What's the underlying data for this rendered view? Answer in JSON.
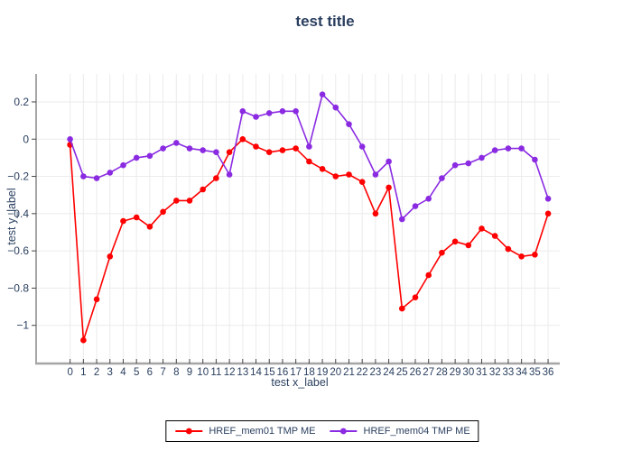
{
  "header": {
    "title": "test title"
  },
  "colors": {
    "text": "#2a3f5f",
    "grid": "#ebebeb",
    "y_axis_line": "#888888",
    "x_axis_line": "#a5a5a5",
    "tick": "#444444",
    "background": "#ffffff",
    "series_red": "#ff0000",
    "series_purple": "#8a2be2"
  },
  "chart_data": {
    "type": "line",
    "title": "test title",
    "xlabel": "test x_label",
    "ylabel": "test y_label",
    "x": [
      0,
      1,
      2,
      3,
      4,
      5,
      6,
      7,
      8,
      9,
      10,
      11,
      12,
      13,
      14,
      15,
      16,
      17,
      18,
      19,
      20,
      21,
      22,
      23,
      24,
      25,
      26,
      27,
      28,
      29,
      30,
      31,
      32,
      33,
      34,
      35,
      36
    ],
    "series": [
      {
        "name": "HREF_mem01 TMP ME",
        "color": "#ff0000",
        "values": [
          -0.03,
          -1.08,
          -0.86,
          -0.63,
          -0.44,
          -0.42,
          -0.47,
          -0.39,
          -0.33,
          -0.33,
          -0.27,
          -0.21,
          -0.07,
          0.0,
          -0.04,
          -0.07,
          -0.06,
          -0.05,
          -0.12,
          -0.16,
          -0.2,
          -0.19,
          -0.23,
          -0.4,
          -0.26,
          -0.91,
          -0.85,
          -0.73,
          -0.61,
          -0.55,
          -0.57,
          -0.48,
          -0.52,
          -0.59,
          -0.63,
          -0.62,
          -0.4
        ]
      },
      {
        "name": "HREF_mem04 TMP ME",
        "color": "#8a2be2",
        "values": [
          0.0,
          -0.2,
          -0.21,
          -0.18,
          -0.14,
          -0.1,
          -0.09,
          -0.05,
          -0.02,
          -0.05,
          -0.06,
          -0.07,
          -0.19,
          0.15,
          0.12,
          0.14,
          0.15,
          0.15,
          -0.04,
          0.24,
          0.17,
          0.08,
          -0.04,
          -0.19,
          -0.12,
          -0.43,
          -0.36,
          -0.32,
          -0.21,
          -0.14,
          -0.13,
          -0.1,
          -0.06,
          -0.05,
          -0.05,
          -0.11,
          -0.32
        ]
      }
    ],
    "xlim": [
      -2.56,
      36.88
    ],
    "ylim": [
      -1.2,
      0.35
    ],
    "yticks": [
      0.2,
      0,
      -0.2,
      -0.4,
      -0.6,
      -0.8,
      -1
    ],
    "ytick_labels": [
      "0.2",
      "0",
      "−0.2",
      "−0.4",
      "−0.6",
      "−0.8",
      "−1"
    ],
    "grid": true,
    "legend_position": "bottom-center",
    "marker": "circle"
  },
  "legend": {
    "items": [
      {
        "label": "HREF_mem01 TMP ME",
        "color": "#ff0000"
      },
      {
        "label": "HREF_mem04 TMP ME",
        "color": "#8a2be2"
      }
    ]
  }
}
